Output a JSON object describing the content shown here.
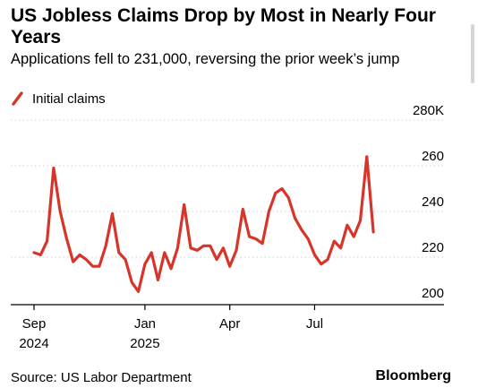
{
  "header": {
    "title": "US Jobless Claims Drop by Most in Nearly Four Years",
    "subtitle": "Applications fell to 231,000, reversing the prior week’s jump"
  },
  "footer": {
    "source": "Source: US Labor Department",
    "brand": "Bloomberg"
  },
  "colors": {
    "line": "#d8352a",
    "grid": "#d0d0d0",
    "axis": "#000000"
  },
  "chart_data": {
    "type": "line",
    "title": "US Jobless Claims Drop by Most in Nearly Four Years",
    "subtitle": "Applications fell to 231,000, reversing the prior week’s jump",
    "xlabel": "",
    "ylabel": "",
    "ylim": [
      200,
      280
    ],
    "y_ticks": [
      {
        "value": 280,
        "label": "280K"
      },
      {
        "value": 260,
        "label": "260"
      },
      {
        "value": 240,
        "label": "240"
      },
      {
        "value": 220,
        "label": "220"
      },
      {
        "value": 200,
        "label": "200"
      }
    ],
    "x_ticks": [
      {
        "label": "Sep",
        "sublabel": "2024",
        "week": 0
      },
      {
        "label": "Jan",
        "sublabel": "2025",
        "week": 17
      },
      {
        "label": "Apr",
        "sublabel": "",
        "week": 30
      },
      {
        "label": "Jul",
        "sublabel": "",
        "week": 43
      }
    ],
    "legend": {
      "position": "top-left"
    },
    "grid": true,
    "series": [
      {
        "name": "Initial claims",
        "values": [
          222,
          221,
          227,
          259,
          240,
          228,
          218,
          221,
          219,
          216,
          216,
          225,
          239,
          222,
          219,
          209,
          205,
          217,
          222,
          210,
          222,
          215,
          224,
          243,
          224,
          223,
          225,
          225,
          219,
          224,
          216,
          223,
          241,
          229,
          228,
          226,
          240,
          248,
          250,
          246,
          237,
          232,
          228,
          221,
          217,
          219,
          227,
          224,
          234,
          229,
          236,
          264,
          231
        ]
      }
    ]
  }
}
